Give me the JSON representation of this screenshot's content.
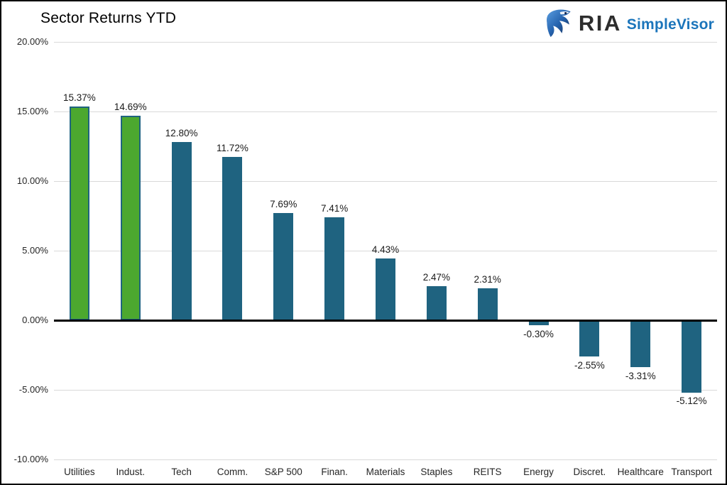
{
  "page": {
    "title": "Sector Returns YTD"
  },
  "logo": {
    "brand": "RIA",
    "product": "SimpleVisor",
    "icon": "eagle"
  },
  "chart_data": {
    "type": "bar",
    "title": "Sector Returns YTD",
    "categories": [
      "Utilities",
      "Indust.",
      "Tech",
      "Comm.",
      "S&P 500",
      "Finan.",
      "Materials",
      "Staples",
      "REITS",
      "Energy",
      "Discret.",
      "Healthcare",
      "Transport"
    ],
    "values": [
      15.37,
      14.69,
      12.8,
      11.72,
      7.69,
      7.41,
      4.43,
      2.47,
      2.31,
      -0.3,
      -2.55,
      -3.31,
      -5.12
    ],
    "data_labels": [
      "15.37%",
      "14.69%",
      "12.80%",
      "11.72%",
      "7.69%",
      "7.41%",
      "4.43%",
      "2.47%",
      "2.31%",
      "-0.30%",
      "-2.55%",
      "-3.31%",
      "-5.12%"
    ],
    "highlighted": [
      true,
      true,
      false,
      false,
      false,
      false,
      false,
      false,
      false,
      false,
      false,
      false,
      false
    ],
    "xlabel": "",
    "ylabel": "",
    "ylim": [
      -10,
      20
    ],
    "yticks": [
      {
        "label": "20.00%",
        "value": 20
      },
      {
        "label": "15.00%",
        "value": 15
      },
      {
        "label": "10.00%",
        "value": 10
      },
      {
        "label": "5.00%",
        "value": 5
      },
      {
        "label": "0.00%",
        "value": 0
      },
      {
        "label": "-5.00%",
        "value": -5
      },
      {
        "label": "-10.00%",
        "value": -10
      }
    ],
    "grid": true,
    "legend": "none",
    "colors": {
      "bar": "#1F6380",
      "highlight_fill": "#4CA82F",
      "highlight_border": "#1F6380",
      "gridline": "#D9D9D9",
      "zero_line": "#000000",
      "label_text": "#1A1A1A",
      "brand_text": "#2D2D2D",
      "product_text": "#1B75BB"
    }
  }
}
